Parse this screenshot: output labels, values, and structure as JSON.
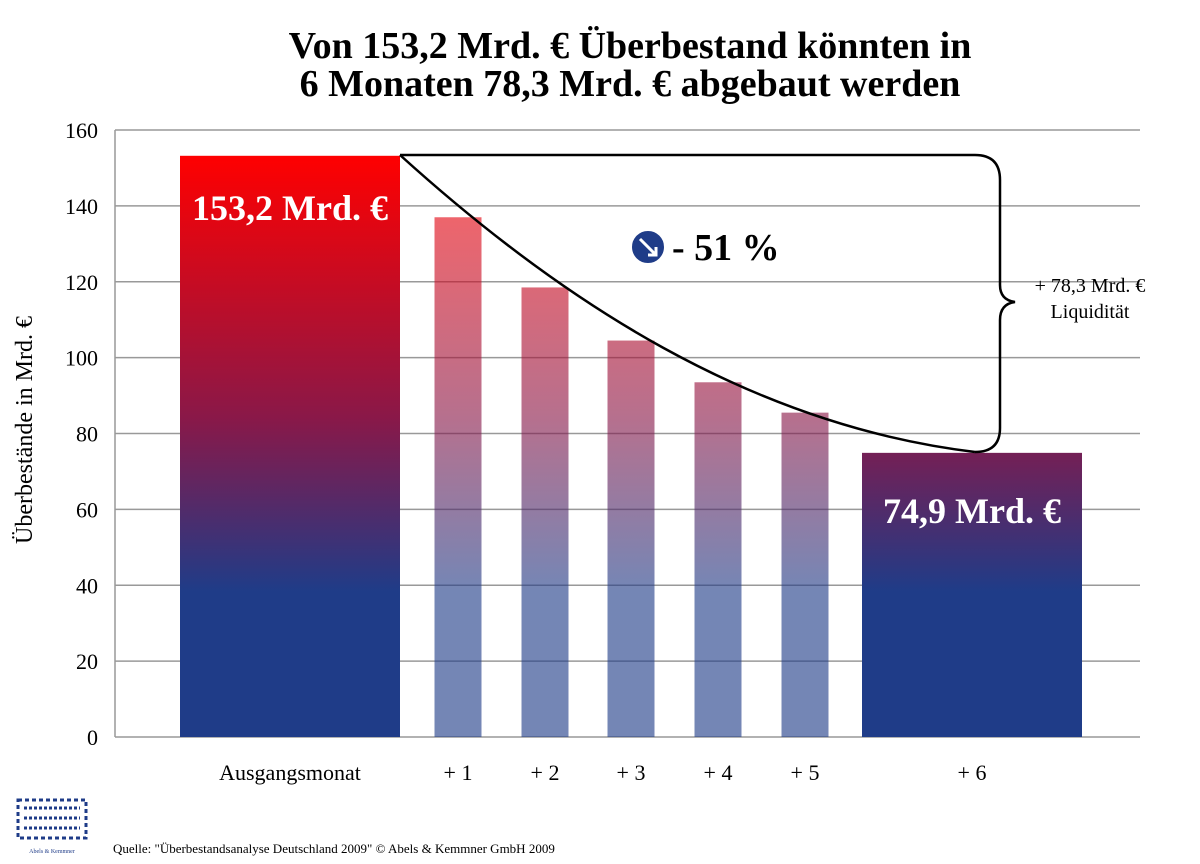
{
  "chart_data": {
    "type": "bar",
    "title": [
      "Von 153,2 Mrd. € Überbestand könnten in",
      "6 Monaten 78,3 Mrd. € abgebaut werden"
    ],
    "y_label": "Überbestände in Mrd. €",
    "categories": [
      "Ausgangsmonat",
      "+ 1",
      "+ 2",
      "+ 3",
      "+ 4",
      "+ 5",
      "+ 6"
    ],
    "values": [
      153.2,
      137,
      118.5,
      104.5,
      93.5,
      85.5,
      74.9
    ],
    "value_labels": [
      "153,2 Mrd. €",
      null,
      null,
      null,
      null,
      null,
      "74,9 Mrd. €"
    ],
    "color_top": "#ff0000",
    "color_bottom": "#1f3c88",
    "ylim": [
      0,
      160
    ],
    "yticks": [
      0,
      20,
      40,
      60,
      80,
      100,
      120,
      140,
      160
    ],
    "grid": true,
    "reduction_label": "- 51 %",
    "liquidity_label": [
      "+ 78,3 Mrd. €",
      "Liquidität"
    ],
    "source": "Quelle: \"Überbestandsanalyse Deutschland 2009\" © Abels & Kemmner GmbH 2009",
    "logo_text": "Abels & Kemmner"
  }
}
